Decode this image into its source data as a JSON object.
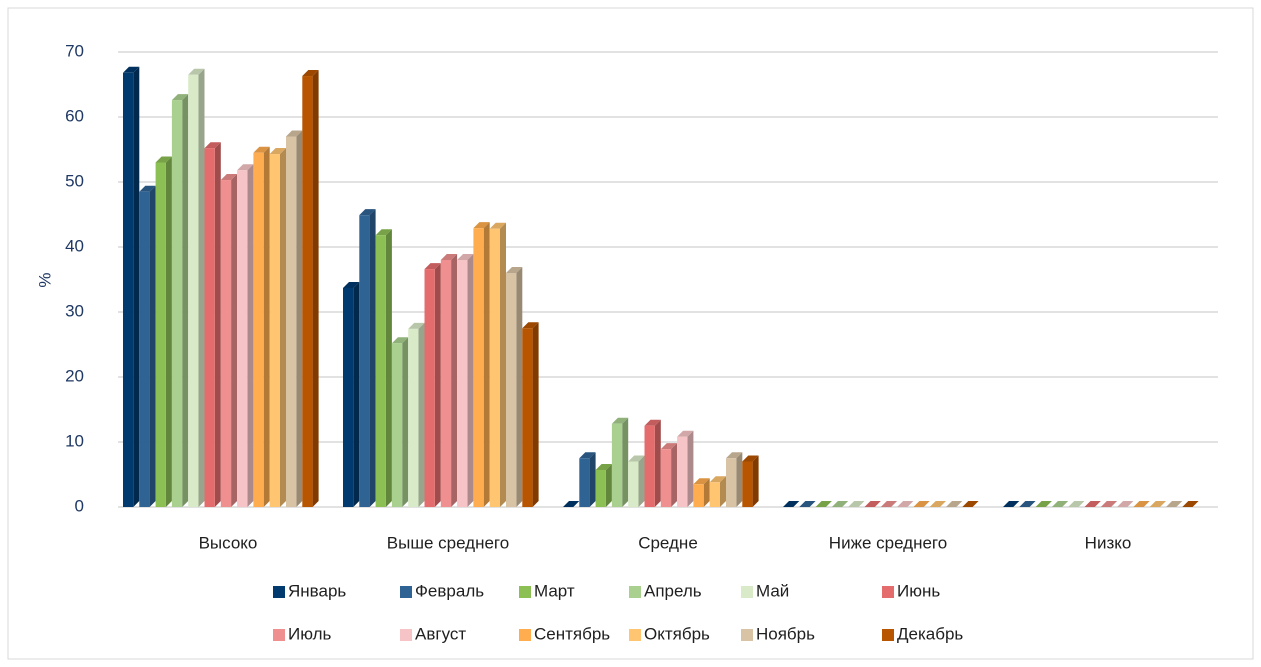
{
  "chart_data": {
    "type": "bar3d",
    "y_label": "%",
    "categories": [
      "Высоко",
      "Выше среднего",
      "Средне",
      "Ниже среднего",
      "Низко"
    ],
    "ylim": [
      0,
      70
    ],
    "yticks": [
      0,
      10,
      20,
      30,
      40,
      50,
      60,
      70
    ],
    "grid": true,
    "legend": "bottom",
    "series": [
      {
        "name": "Январь",
        "color": "#003a6e",
        "values": [
          66.8,
          33.7,
          0,
          0,
          0
        ]
      },
      {
        "name": "Февраль",
        "color": "#2f6394",
        "values": [
          48.5,
          44.9,
          7.5,
          0,
          0
        ]
      },
      {
        "name": "Март",
        "color": "#8cbf54",
        "values": [
          53,
          41.8,
          5.7,
          0,
          0
        ]
      },
      {
        "name": "Апрель",
        "color": "#a9d08e",
        "values": [
          62.6,
          25.2,
          12.8,
          0,
          0
        ]
      },
      {
        "name": "Май",
        "color": "#d9eac8",
        "values": [
          66.5,
          27.4,
          7,
          0,
          0
        ]
      },
      {
        "name": "Июнь",
        "color": "#e56c6c",
        "values": [
          55.2,
          36.6,
          12.5,
          0,
          0
        ]
      },
      {
        "name": "Июль",
        "color": "#ef8f8f",
        "values": [
          50.3,
          38,
          8.9,
          0,
          0
        ]
      },
      {
        "name": "Август",
        "color": "#f6c4c6",
        "values": [
          51.8,
          38,
          10.8,
          0,
          0
        ]
      },
      {
        "name": "Сентябрь",
        "color": "#ffad4f",
        "values": [
          54.5,
          42.9,
          3.5,
          0,
          0
        ]
      },
      {
        "name": "Октябрь",
        "color": "#ffc571",
        "values": [
          54.3,
          42.8,
          3.8,
          0,
          0
        ]
      },
      {
        "name": "Ноябрь",
        "color": "#d9c3a5",
        "values": [
          57,
          36,
          7.5,
          0,
          0
        ]
      },
      {
        "name": "Декабрь",
        "color": "#b85500",
        "values": [
          66.3,
          27.5,
          7,
          0,
          0
        ]
      }
    ]
  }
}
